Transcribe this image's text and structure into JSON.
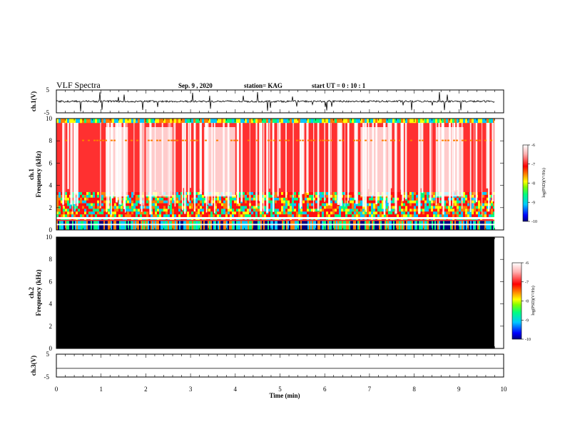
{
  "header": {
    "title": "VLF Spectra",
    "date": "Sep. 9 , 2020",
    "station": "station= KAG",
    "start": "start  UT =   0 : 10 : 1"
  },
  "colors": {
    "background": "#ffffff",
    "axis": "#000000",
    "ch2_fill": "#000000",
    "colormap": [
      "#000080",
      "#0000ff",
      "#00c8ff",
      "#00ff80",
      "#80ff00",
      "#ffff00",
      "#ff8000",
      "#ff0000",
      "#ffb0b0",
      "#ffffff"
    ]
  },
  "chart_data": [
    {
      "type": "line",
      "id": "ch1-waveform",
      "ylabel": "ch.1(V)",
      "ylim": [
        -5,
        5
      ],
      "y_ticks": [
        "5",
        "-5"
      ],
      "baseline": 0,
      "xlim": [
        0,
        10
      ],
      "description_values": "noisy baseline near 0 V with sparse spikes"
    },
    {
      "type": "heatmap",
      "id": "ch1-spectrogram",
      "ylabel": "ch.1\nFrequency  (kHz)",
      "ylabel_lines": [
        "ch.1",
        "Frequency  (kHz)"
      ],
      "ylim": [
        0,
        10
      ],
      "y_ticks": [
        "0",
        "2",
        "4",
        "6",
        "8",
        "10"
      ],
      "xlim": [
        0,
        10
      ],
      "data_end_min": 9.85,
      "colorbar": {
        "label": "log(PSD)(V²/Hz)",
        "ticks": [
          "-6",
          "-7",
          "-8",
          "-9",
          "-10"
        ],
        "range": [
          -10,
          -6
        ]
      }
    },
    {
      "type": "heatmap",
      "id": "ch2-spectrogram",
      "ylabel_lines": [
        "ch.2",
        "Frequency  (kHz)"
      ],
      "ylim": [
        0,
        10
      ],
      "y_ticks": [
        "0",
        "2",
        "4",
        "6",
        "8",
        "10"
      ],
      "xlim": [
        0,
        10
      ],
      "data_end_min": 9.85,
      "fill": "uniform black (no signal)",
      "colorbar": {
        "label": "log(PSD)(V²/Hz)",
        "ticks": [
          "-6",
          "-7",
          "-8",
          "-9",
          "-10"
        ],
        "range": [
          -10,
          -6
        ]
      }
    },
    {
      "type": "line",
      "id": "ch3-waveform",
      "ylabel": "ch.3(V)",
      "ylim": [
        -5,
        5
      ],
      "y_ticks": [
        "5",
        "-5"
      ],
      "constant_value": -1.2,
      "xlim": [
        0,
        10
      ]
    }
  ],
  "x_axis": {
    "label": "Time  (min)",
    "ticks": [
      "0",
      "1",
      "2",
      "3",
      "4",
      "5",
      "6",
      "7",
      "8",
      "9",
      "10"
    ]
  }
}
